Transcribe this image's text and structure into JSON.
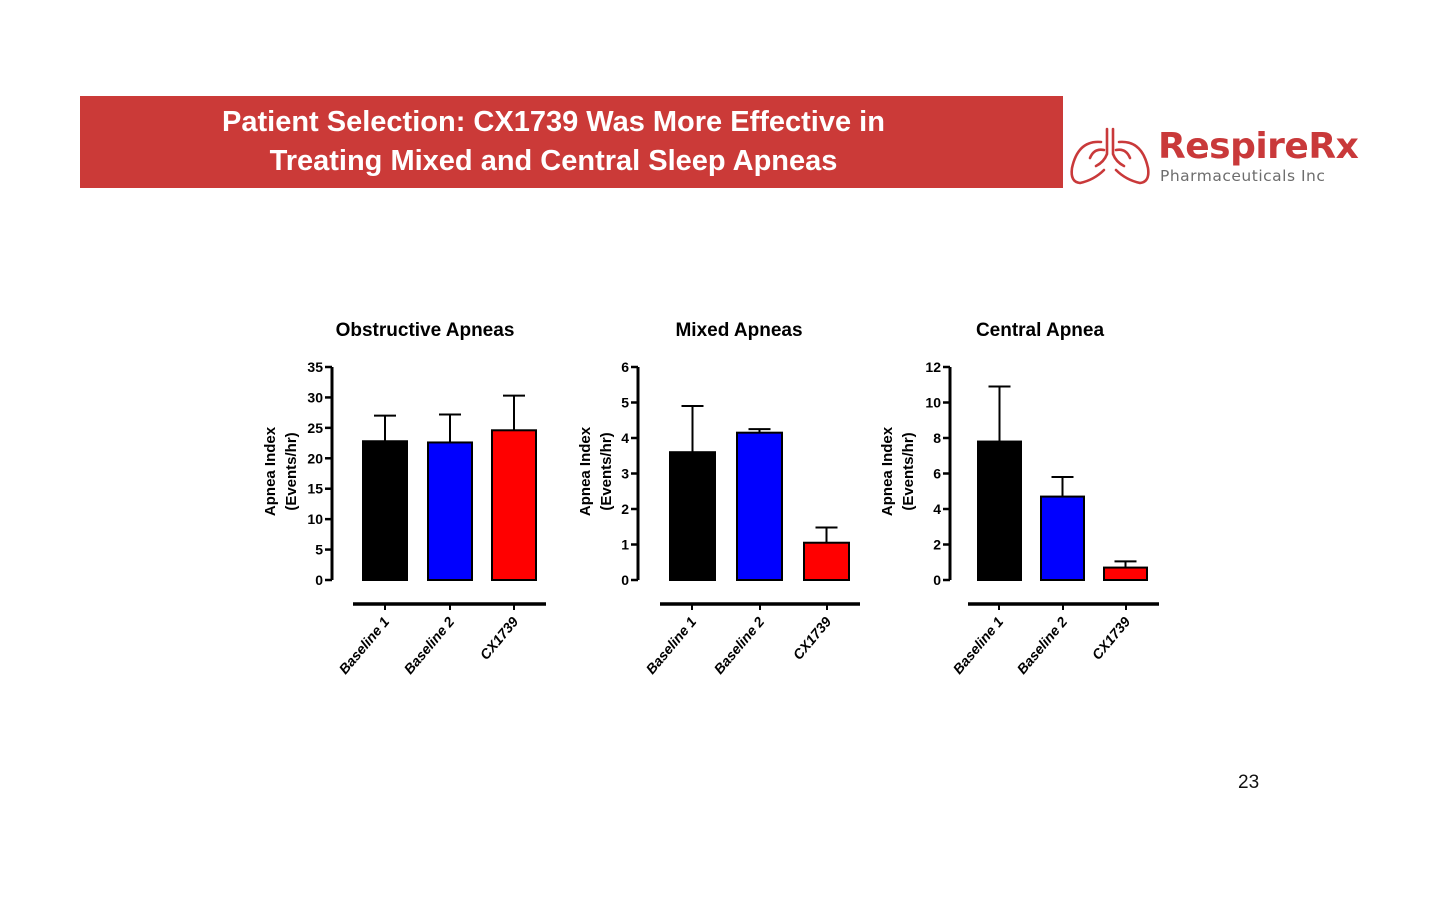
{
  "slide": {
    "title_line1": "Patient Selection: CX1739 Was More Effective in",
    "title_line2": "Treating Mixed and Central Sleep Apneas",
    "banner_color": "#cb3a38",
    "logo": {
      "name": "RespireRx",
      "subtitle": "Pharmaceuticals Inc",
      "icon": "lungs-icon",
      "color": "#c9393a"
    },
    "page_number": "23"
  },
  "chart_data": [
    {
      "type": "bar",
      "title": "Obstructive Apneas",
      "ylabel_line1": "Apnea Index",
      "ylabel_line2": "(Events/hr)",
      "xlabel": "",
      "categories": [
        "Baseline 1",
        "Baseline 2",
        "CX1739"
      ],
      "values": [
        22.8,
        22.6,
        24.6
      ],
      "error_upper": [
        27.0,
        27.2,
        30.3
      ],
      "colors": [
        "#000000",
        "#0000ff",
        "#ff0000"
      ],
      "ylim": [
        0,
        35
      ],
      "yticks": [
        0,
        5,
        10,
        15,
        20,
        25,
        30,
        35
      ],
      "grid": false,
      "legend": "none"
    },
    {
      "type": "bar",
      "title": "Mixed Apneas",
      "ylabel_line1": "Apnea Index",
      "ylabel_line2": "(Events/hr)",
      "xlabel": "",
      "categories": [
        "Baseline 1",
        "Baseline 2",
        "CX1739"
      ],
      "values": [
        3.6,
        4.15,
        1.05
      ],
      "error_upper": [
        4.9,
        4.25,
        1.48
      ],
      "colors": [
        "#000000",
        "#0000ff",
        "#ff0000"
      ],
      "ylim": [
        0,
        6
      ],
      "yticks": [
        0,
        1,
        2,
        3,
        4,
        5,
        6
      ],
      "grid": false,
      "legend": "none"
    },
    {
      "type": "bar",
      "title": "Central  Apnea",
      "ylabel_line1": "Apnea Index",
      "ylabel_line2": "(Events/hr)",
      "xlabel": "",
      "categories": [
        "Baseline 1",
        "Baseline 2",
        "CX1739"
      ],
      "values": [
        7.8,
        4.7,
        0.7
      ],
      "error_upper": [
        10.9,
        5.8,
        1.05
      ],
      "colors": [
        "#000000",
        "#0000ff",
        "#ff0000"
      ],
      "ylim": [
        0,
        12
      ],
      "yticks": [
        0,
        2,
        4,
        6,
        8,
        10,
        12
      ],
      "grid": false,
      "legend": "none"
    }
  ]
}
